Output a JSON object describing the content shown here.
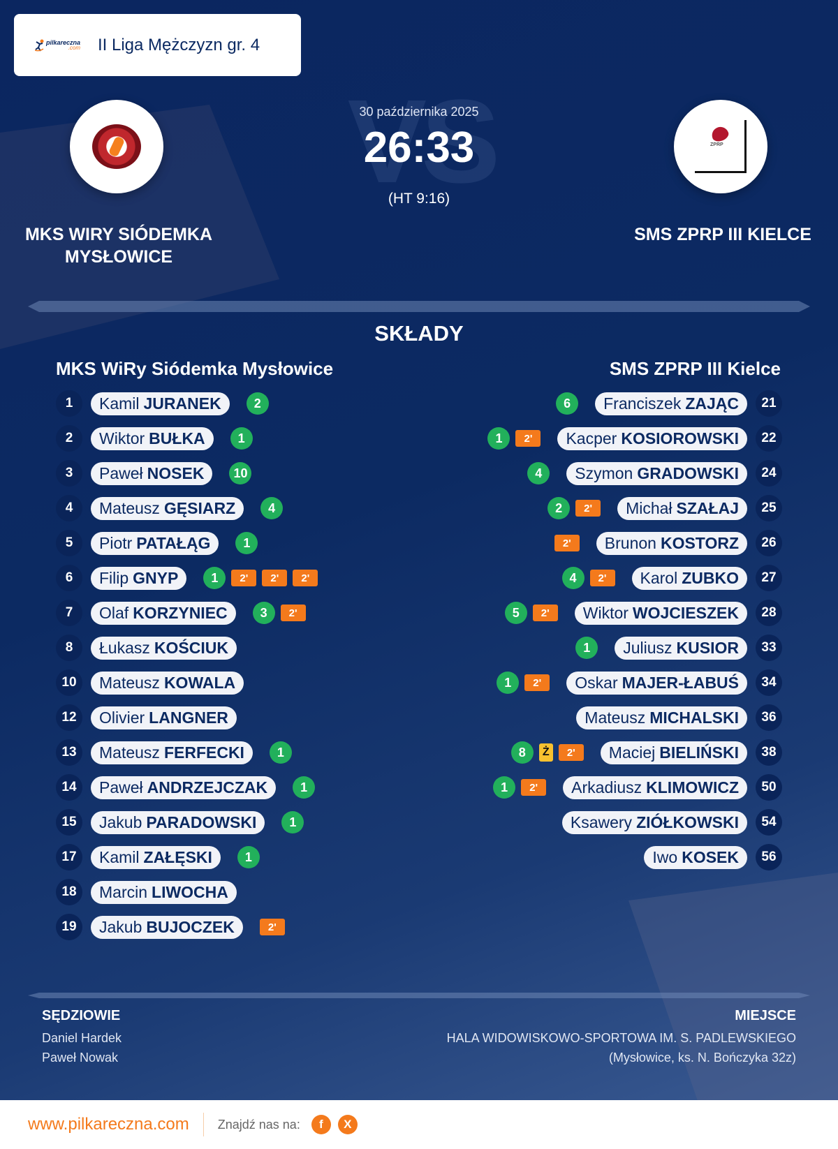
{
  "header": {
    "brand": {
      "name": "pilkareczna",
      "suffix": ".com"
    },
    "league": "II Liga Mężczyzn gr. 4"
  },
  "match": {
    "date": "30 października 2025",
    "score": "26:33",
    "halftime": "(HT 9:16)",
    "vs_watermark": "VS"
  },
  "home": {
    "name": "MKS WIRY SIÓDEMKA MYSŁOWICE",
    "squad_title": "MKS WiRy Siódemka Mysłowice",
    "players": [
      {
        "number": "1",
        "first": "Kamil",
        "last": "JURANEK",
        "goals": "2",
        "yellow": false,
        "penalties": []
      },
      {
        "number": "2",
        "first": "Wiktor",
        "last": "BUŁKA",
        "goals": "1",
        "yellow": false,
        "penalties": []
      },
      {
        "number": "3",
        "first": "Paweł",
        "last": "NOSEK",
        "goals": "10",
        "yellow": false,
        "penalties": []
      },
      {
        "number": "4",
        "first": "Mateusz",
        "last": "GĘSIARZ",
        "goals": "4",
        "yellow": false,
        "penalties": []
      },
      {
        "number": "5",
        "first": "Piotr",
        "last": "PATAŁĄG",
        "goals": "1",
        "yellow": false,
        "penalties": []
      },
      {
        "number": "6",
        "first": "Filip",
        "last": "GNYP",
        "goals": "1",
        "yellow": false,
        "penalties": [
          "2'",
          "2'",
          "2'"
        ]
      },
      {
        "number": "7",
        "first": "Olaf",
        "last": "KORZYNIEC",
        "goals": "3",
        "yellow": false,
        "penalties": [
          "2'"
        ]
      },
      {
        "number": "8",
        "first": "Łukasz",
        "last": "KOŚCIUK",
        "goals": null,
        "yellow": false,
        "penalties": []
      },
      {
        "number": "10",
        "first": "Mateusz",
        "last": "KOWALA",
        "goals": null,
        "yellow": false,
        "penalties": []
      },
      {
        "number": "12",
        "first": "Olivier",
        "last": "LANGNER",
        "goals": null,
        "yellow": false,
        "penalties": []
      },
      {
        "number": "13",
        "first": "Mateusz",
        "last": "FERFECKI",
        "goals": "1",
        "yellow": false,
        "penalties": []
      },
      {
        "number": "14",
        "first": "Paweł",
        "last": "ANDRZEJCZAK",
        "goals": "1",
        "yellow": false,
        "penalties": []
      },
      {
        "number": "15",
        "first": "Jakub",
        "last": "PARADOWSKI",
        "goals": "1",
        "yellow": false,
        "penalties": []
      },
      {
        "number": "17",
        "first": "Kamil",
        "last": "ZAŁĘSKI",
        "goals": "1",
        "yellow": false,
        "penalties": []
      },
      {
        "number": "18",
        "first": "Marcin",
        "last": "LIWOCHA",
        "goals": null,
        "yellow": false,
        "penalties": []
      },
      {
        "number": "19",
        "first": "Jakub",
        "last": "BUJOCZEK",
        "goals": null,
        "yellow": false,
        "penalties": [
          "2'"
        ]
      }
    ]
  },
  "away": {
    "name": "SMS ZPRP III KIELCE",
    "squad_title": "SMS ZPRP III Kielce",
    "players": [
      {
        "number": "21",
        "first": "Franciszek",
        "last": "ZAJĄC",
        "goals": "6",
        "yellow": false,
        "penalties": []
      },
      {
        "number": "22",
        "first": "Kacper",
        "last": "KOSIOROWSKI",
        "goals": "1",
        "yellow": false,
        "penalties": [
          "2'"
        ]
      },
      {
        "number": "24",
        "first": "Szymon",
        "last": "GRADOWSKI",
        "goals": "4",
        "yellow": false,
        "penalties": []
      },
      {
        "number": "25",
        "first": "Michał",
        "last": "SZAŁAJ",
        "goals": "2",
        "yellow": false,
        "penalties": [
          "2'"
        ]
      },
      {
        "number": "26",
        "first": "Brunon",
        "last": "KOSTORZ",
        "goals": null,
        "yellow": false,
        "penalties": [
          "2'"
        ]
      },
      {
        "number": "27",
        "first": "Karol",
        "last": "ZUBKO",
        "goals": "4",
        "yellow": false,
        "penalties": [
          "2'"
        ]
      },
      {
        "number": "28",
        "first": "Wiktor",
        "last": "WOJCIESZEK",
        "goals": "5",
        "yellow": false,
        "penalties": [
          "2'"
        ]
      },
      {
        "number": "33",
        "first": "Juliusz",
        "last": "KUSIOR",
        "goals": "1",
        "yellow": false,
        "penalties": []
      },
      {
        "number": "34",
        "first": "Oskar",
        "last": "MAJER-ŁABUŚ",
        "goals": "1",
        "yellow": false,
        "penalties": [
          "2'"
        ]
      },
      {
        "number": "36",
        "first": "Mateusz",
        "last": "MICHALSKI",
        "goals": null,
        "yellow": false,
        "penalties": []
      },
      {
        "number": "38",
        "first": "Maciej",
        "last": "BIELIŃSKI",
        "goals": "8",
        "yellow": true,
        "yellow_label": "Ż",
        "penalties": [
          "2'"
        ]
      },
      {
        "number": "50",
        "first": "Arkadiusz",
        "last": "KLIMOWICZ",
        "goals": "1",
        "yellow": false,
        "penalties": [
          "2'"
        ]
      },
      {
        "number": "54",
        "first": "Ksawery",
        "last": "ZIÓŁKOWSKI",
        "goals": null,
        "yellow": false,
        "penalties": []
      },
      {
        "number": "56",
        "first": "Iwo",
        "last": "KOSEK",
        "goals": null,
        "yellow": false,
        "penalties": []
      }
    ]
  },
  "lineups_title": "SKŁADY",
  "referees": {
    "title": "SĘDZIOWIE",
    "names": [
      "Daniel Hardek",
      "Paweł Nowak"
    ]
  },
  "venue": {
    "title": "MIEJSCE",
    "name": "HALA WIDOWISKOWO-SPORTOWA IM. S. PADLEWSKIEGO",
    "address": "(Mysłowice, ks. N. Bończyka 32z)"
  },
  "footer": {
    "website": "www.pilkareczna.com",
    "find_us": "Znajdź nas na:",
    "social": [
      {
        "name": "facebook",
        "glyph": "f"
      },
      {
        "name": "x",
        "glyph": "X"
      }
    ]
  },
  "colors": {
    "background_navy": "#0c2a62",
    "goal_green": "#22b05b",
    "penalty_orange": "#f47a1c",
    "yellow_card": "#f8c12f",
    "brand_orange": "#f47a1c"
  }
}
